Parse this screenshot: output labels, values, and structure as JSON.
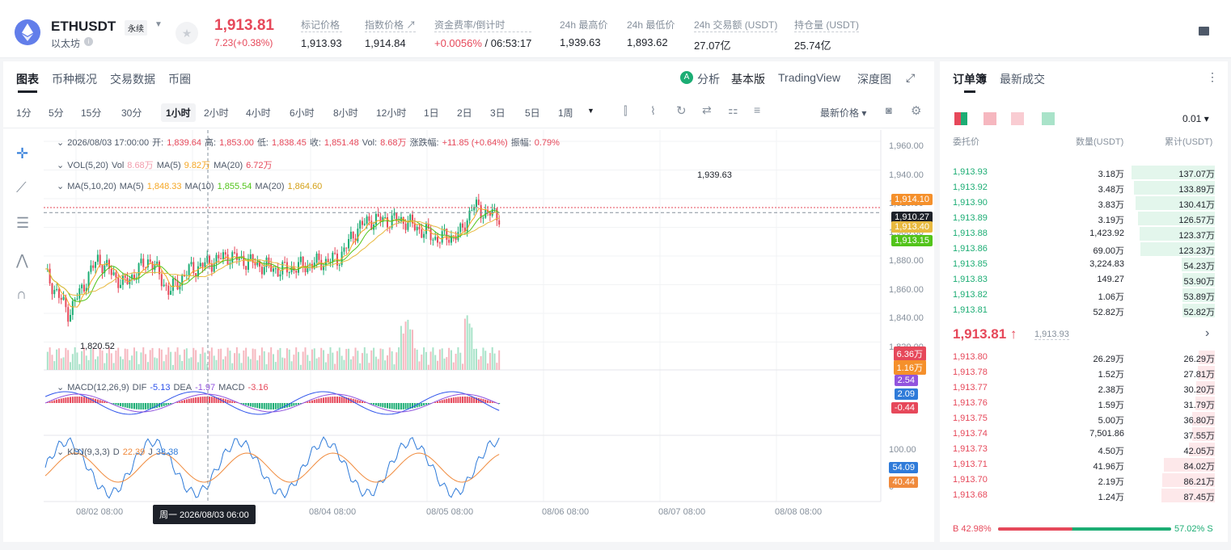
{
  "header": {
    "symbol": "ETHUSDT",
    "contract": "永续",
    "name": "以太坊",
    "price": "1,913.81",
    "change": "7.23(+0.38%)",
    "stats": [
      {
        "label": "标记价格",
        "value": "1,913.93"
      },
      {
        "label": "指数价格 ↗",
        "value": "1,914.84"
      },
      {
        "label": "资金费率/倒计时",
        "value_a": "+0.0056%",
        "value_b": " / 06:53:17"
      },
      {
        "label": "24h 最高价",
        "value": "1,939.63"
      },
      {
        "label": "24h 最低价",
        "value": "1,893.62"
      },
      {
        "label": "24h 交易额 (USDT)",
        "value": "27.07亿"
      },
      {
        "label": "持仓量 (USDT)",
        "value": "25.74亿"
      }
    ]
  },
  "chart_tabs": [
    "图表",
    "币种概况",
    "交易数据",
    "币圈"
  ],
  "chart_modes": {
    "analysis": "分析",
    "basic": "基本版",
    "tv": "TradingView",
    "depth": "深度图"
  },
  "intervals": [
    "1分",
    "5分",
    "15分",
    "30分",
    "1小时",
    "2小时",
    "4小时",
    "6小时",
    "8小时",
    "12小时",
    "1日",
    "2日",
    "3日",
    "5日",
    "1周"
  ],
  "active_interval": "1小时",
  "price_type": "最新价格",
  "legend": {
    "ohlc_time": "2026/08/03 17:00:00",
    "open_l": "开:",
    "open": "1,839.64",
    "high_l": "高:",
    "high": "1,853.00",
    "low_l": "低:",
    "low": "1,838.45",
    "close_l": "收:",
    "close": "1,851.48",
    "vol_l": "Vol:",
    "vol": "8.68万",
    "chg_l": "涨跌幅:",
    "chg": "+11.85 (+0.64%)",
    "amp_l": "振幅:",
    "amp": "0.79%",
    "vol_title": "VOL(5,20)",
    "vol_v_l": "Vol",
    "vol_v": "8.68万",
    "vol_ma5_l": "MA(5)",
    "vol_ma5": "9.82万",
    "vol_ma20_l": "MA(20)",
    "vol_ma20": "6.72万",
    "ma_title": "MA(5,10,20)",
    "ma5_l": "MA(5)",
    "ma5": "1,848.33",
    "ma10_l": "MA(10)",
    "ma10": "1,855.54",
    "ma20_l": "MA(20)",
    "ma20": "1,864.60",
    "macd_title": "MACD(12,26,9)",
    "dif_l": "DIF",
    "dif": "-5.13",
    "dea_l": "DEA",
    "dea": "-1.97",
    "macd_l": "MACD",
    "macd": "-3.16",
    "kdj_title": "KDJ(9,3,3)",
    "d_l": "D",
    "d": "22.39",
    "j_l": "J",
    "j": "38.38"
  },
  "price_axis": [
    "1,960.00",
    "1,940.00",
    "1,920.00",
    "1,900.00",
    "1,880.00",
    "1,860.00",
    "1,840.00",
    "1,820.00"
  ],
  "kdj_axis": [
    "100.00",
    "50.00",
    "0"
  ],
  "time_axis": [
    "08/02 08:00",
    "08/04 08:00",
    "08/05 08:00",
    "08/06 08:00",
    "08/07 08:00",
    "08/08 08:00"
  ],
  "crosshair_time": "周一 2026/08/03 06:00",
  "price_labels": {
    "p1": "1,914.10",
    "p2": "1,910.27",
    "p3": "1,913.40",
    "p4": "1,913.15",
    "vol_a": "6.36万",
    "vol_b": "1.16万",
    "macd_a": "2.54",
    "macd_b": "2.09",
    "macd_c": "-0.44",
    "kdj_a": "54.09",
    "kdj_b": "40.44"
  },
  "annotations": {
    "high": "1,939.63",
    "low": "1,820.52"
  },
  "book": {
    "tabs": [
      "订单簿",
      "最新成交"
    ],
    "precision": "0.01",
    "cols": [
      "委托价",
      "数量(USDT)",
      "累计(USDT)"
    ],
    "asks": [
      [
        "1,913.93",
        "3.18万",
        "137.07万",
        137.07
      ],
      [
        "1,913.92",
        "3.48万",
        "133.89万",
        133.89
      ],
      [
        "1,913.90",
        "3.83万",
        "130.41万",
        130.41
      ],
      [
        "1,913.89",
        "3.19万",
        "126.57万",
        126.57
      ],
      [
        "1,913.88",
        "1,423.92",
        "123.37万",
        123.37
      ],
      [
        "1,913.86",
        "69.00万",
        "123.23万",
        123.23
      ],
      [
        "1,913.85",
        "3,224.83",
        "54.23万",
        54.23
      ],
      [
        "1,913.83",
        "149.27",
        "53.90万",
        53.9
      ],
      [
        "1,913.82",
        "1.06万",
        "53.89万",
        53.89
      ],
      [
        "1,913.81",
        "52.82万",
        "52.82万",
        52.82
      ]
    ],
    "mid": "1,913.81",
    "mid_mark": "1,913.93",
    "bids": [
      [
        "1,913.80",
        "26.29万",
        "26.29万",
        26.29
      ],
      [
        "1,913.78",
        "1.52万",
        "27.81万",
        27.81
      ],
      [
        "1,913.77",
        "2.38万",
        "30.20万",
        30.2
      ],
      [
        "1,913.76",
        "1.59万",
        "31.79万",
        31.79
      ],
      [
        "1,913.75",
        "5.00万",
        "36.80万",
        36.8
      ],
      [
        "1,913.74",
        "7,501.86",
        "37.55万",
        37.55
      ],
      [
        "1,913.73",
        "4.50万",
        "42.05万",
        42.05
      ],
      [
        "1,913.71",
        "41.96万",
        "84.02万",
        84.02
      ],
      [
        "1,913.70",
        "2.19万",
        "86.21万",
        86.21
      ],
      [
        "1,913.68",
        "1.24万",
        "87.45万",
        87.45
      ]
    ],
    "ratio_b": "B 42.98%",
    "ratio_s": "57.02% S",
    "buy_pct": 42.98
  },
  "colors": {
    "up": "#1cad74",
    "down": "#e6485a",
    "ma5": "#f5a623",
    "ma10": "#7ed321",
    "ma20": "#e8b93f",
    "dif": "#2f54eb",
    "dea": "#9254de",
    "k": "#2f7bd9",
    "d": "#f08a3c"
  }
}
